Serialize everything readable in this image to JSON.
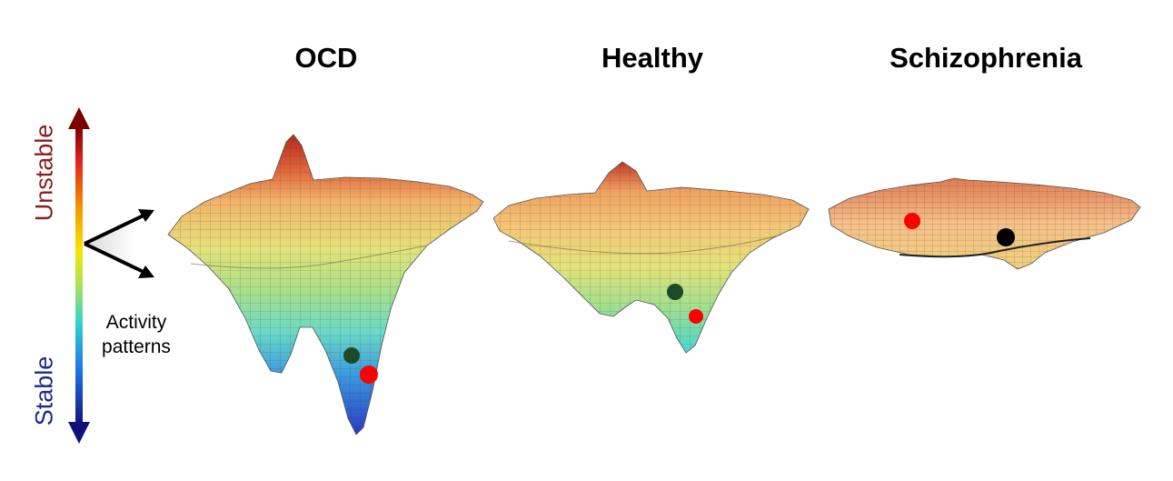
{
  "titles": {
    "ocd": "OCD",
    "healthy": "Healthy",
    "schizophrenia": "Schizophrenia"
  },
  "scale": {
    "top_label": "Unstable",
    "bottom_label": "Stable",
    "top_color": "#8b1c1c",
    "bottom_color": "#1c2a8b"
  },
  "legend": {
    "line1": "Activity",
    "line2": "patterns"
  },
  "colors": {
    "ball_red": "#ff0000",
    "ball_dark": "#1f4a2a",
    "ball_black": "#000000",
    "surface_warm": "#f4b36a"
  }
}
